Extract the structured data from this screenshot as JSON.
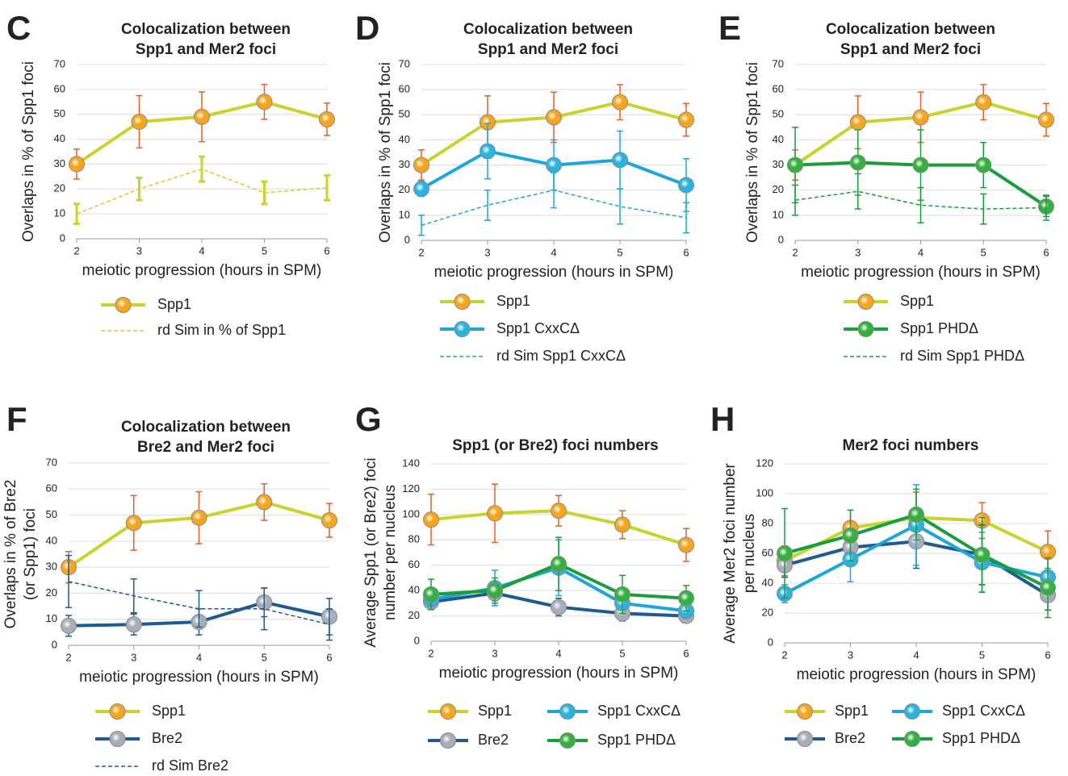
{
  "chart_data": [
    {
      "type": "line",
      "panel": "C",
      "title": [
        "Colocalization between",
        "Spp1 and Mer2 foci"
      ],
      "ylabel": [
        "Overlaps in % of Spp1 foci"
      ],
      "xlabel": "meiotic progression (hours in SPM)",
      "x": [
        2,
        3,
        4,
        5,
        6
      ],
      "xlim": [
        2,
        6
      ],
      "xticks": [
        2,
        3,
        4,
        5,
        6
      ],
      "ylim": [
        0,
        70
      ],
      "yticks": [
        0,
        10,
        20,
        30,
        40,
        50,
        60,
        70
      ],
      "grid": true,
      "legend_columns": 1,
      "series": [
        {
          "name": "Spp1",
          "color": "#c9d32b",
          "marker_color": "#f7a51c",
          "error_color": "#e2602a",
          "dashed": false,
          "values": [
            30,
            47,
            49,
            55,
            48
          ],
          "errors": [
            6,
            10.5,
            10,
            7,
            6.5
          ]
        },
        {
          "name": "rd Sim in % of Spp1",
          "color": "#c9d32b",
          "error_color": "#c9d32b",
          "dashed": true,
          "values": [
            10,
            20,
            28,
            18.5,
            20.5
          ],
          "errors": [
            4,
            4.5,
            5,
            4.5,
            5
          ]
        }
      ]
    },
    {
      "type": "line",
      "panel": "D",
      "title": [
        "Colocalization between",
        "Spp1 and Mer2 foci"
      ],
      "ylabel": [
        "Overlaps in % of Spp1 foci"
      ],
      "xlabel": "meiotic progression (hours in SPM)",
      "x": [
        2,
        3,
        4,
        5,
        6
      ],
      "xlim": [
        2,
        6
      ],
      "xticks": [
        2,
        3,
        4,
        5,
        6
      ],
      "ylim": [
        0,
        70
      ],
      "yticks": [
        0,
        10,
        20,
        30,
        40,
        50,
        60,
        70
      ],
      "grid": true,
      "legend_columns": 1,
      "series": [
        {
          "name": "Spp1",
          "color": "#c9d32b",
          "marker_color": "#f7a51c",
          "error_color": "#e2602a",
          "dashed": false,
          "values": [
            30,
            47,
            49,
            55,
            48
          ],
          "errors": [
            6,
            10.5,
            10,
            7,
            6.5
          ]
        },
        {
          "name": "Spp1 CxxCΔ",
          "color": "#1ba8d8",
          "marker_color": "#2bb3e0",
          "error_color": "#1ba8d8",
          "dashed": false,
          "values": [
            20.5,
            35.5,
            30,
            32,
            22
          ],
          "errors": [
            3,
            11,
            10,
            11.5,
            10.5
          ]
        },
        {
          "name": "rd Sim Spp1 CxxCΔ",
          "color": "#1ba8d8",
          "error_color": "#1ba8d8",
          "dashed": true,
          "values": [
            6,
            14,
            20,
            13.5,
            9
          ],
          "errors": [
            4,
            6,
            7,
            7,
            6
          ]
        }
      ]
    },
    {
      "type": "line",
      "panel": "E",
      "title": [
        "Colocalization between",
        "Spp1 and Mer2 foci"
      ],
      "ylabel": [
        "Overlaps in % of Spp1 foci"
      ],
      "xlabel": "meiotic progression (hours in SPM)",
      "x": [
        2,
        3,
        4,
        5,
        6
      ],
      "xlim": [
        2,
        6
      ],
      "xticks": [
        2,
        3,
        4,
        5,
        6
      ],
      "ylim": [
        0,
        70
      ],
      "yticks": [
        0,
        10,
        20,
        30,
        40,
        50,
        60,
        70
      ],
      "grid": true,
      "legend_columns": 1,
      "series": [
        {
          "name": "Spp1",
          "color": "#c9d32b",
          "marker_color": "#f7a51c",
          "error_color": "#e2602a",
          "dashed": false,
          "values": [
            30,
            47,
            49,
            55,
            48
          ],
          "errors": [
            6,
            10.5,
            10,
            7,
            6.5
          ]
        },
        {
          "name": "Spp1 PHDΔ",
          "color": "#1a9e3c",
          "marker_color": "#34b040",
          "error_color": "#1a9e3c",
          "dashed": false,
          "values": [
            30,
            31,
            30,
            30,
            13.5
          ],
          "errors": [
            15,
            13,
            14,
            9,
            4
          ]
        },
        {
          "name": "rd Sim Spp1 PHDΔ",
          "color": "#1a9e3c",
          "error_color": "#1a9e3c",
          "dashed": true,
          "values": [
            16,
            19.5,
            14,
            12.5,
            13
          ],
          "errors": [
            6,
            7,
            7,
            6,
            5
          ]
        }
      ]
    },
    {
      "type": "line",
      "panel": "F",
      "title": [
        "Colocalization between",
        "Bre2 and Mer2 foci"
      ],
      "ylabel": [
        "Overlaps in % of Bre2",
        "(or Spp1) foci"
      ],
      "xlabel": "meiotic progression (hours in SPM)",
      "x": [
        2,
        3,
        4,
        5,
        6
      ],
      "xlim": [
        2,
        6
      ],
      "xticks": [
        2,
        3,
        4,
        5,
        6
      ],
      "ylim": [
        0,
        70
      ],
      "yticks": [
        0,
        10,
        20,
        30,
        40,
        50,
        60,
        70
      ],
      "grid": true,
      "legend_columns": 1,
      "series": [
        {
          "name": "Spp1",
          "color": "#c9d32b",
          "marker_color": "#f7a51c",
          "error_color": "#e2602a",
          "dashed": false,
          "values": [
            30,
            47,
            49,
            55,
            48
          ],
          "errors": [
            6,
            10.5,
            10,
            7,
            6.5
          ]
        },
        {
          "name": "Bre2",
          "color": "#1f5b8e",
          "marker_color": "#a8adb8",
          "error_color": "#1f5b8e",
          "dashed": false,
          "values": [
            7.5,
            8,
            9,
            16.5,
            11
          ],
          "errors": [
            4,
            4,
            5,
            5.5,
            7
          ]
        },
        {
          "name": "rd Sim Bre2",
          "color": "#1f5b8e",
          "error_color": "#1f5b8e",
          "dashed": true,
          "values": [
            24.5,
            19,
            14,
            14,
            8
          ],
          "errors": [
            10,
            6.5,
            7,
            8,
            6
          ]
        }
      ]
    },
    {
      "type": "line",
      "panel": "G",
      "title": [
        "Spp1 (or Bre2) foci numbers"
      ],
      "ylabel": [
        "Average Spp1 (or Bre2) foci",
        "number per nucleus"
      ],
      "xlabel": "meiotic progression (hours in SPM)",
      "x": [
        2,
        3,
        4,
        5,
        6
      ],
      "xlim": [
        2,
        6
      ],
      "xticks": [
        2,
        3,
        4,
        5,
        6
      ],
      "ylim": [
        0,
        140
      ],
      "yticks": [
        0,
        20,
        40,
        60,
        80,
        100,
        120,
        140
      ],
      "grid": true,
      "legend_columns": 2,
      "series": [
        {
          "name": "Spp1",
          "color": "#c9d32b",
          "marker_color": "#f7a51c",
          "error_color": "#e2602a",
          "dashed": false,
          "values": [
            96,
            101,
            103,
            92,
            76
          ],
          "errors": [
            20,
            23,
            12,
            11,
            13
          ]
        },
        {
          "name": "Bre2",
          "color": "#1f5b8e",
          "marker_color": "#a8adb8",
          "error_color": "#1f5b8e",
          "dashed": false,
          "values": [
            31,
            38,
            27,
            22,
            20
          ],
          "errors": [
            6,
            6,
            7,
            6,
            5
          ]
        },
        {
          "name": "Spp1 CxxCΔ",
          "color": "#1ba8d8",
          "marker_color": "#2bb3e0",
          "error_color": "#1ba8d8",
          "dashed": false,
          "values": [
            33,
            42,
            58,
            30,
            24
          ],
          "errors": [
            6,
            14,
            22,
            8,
            6
          ]
        },
        {
          "name": "Spp1 PHDΔ",
          "color": "#1a9e3c",
          "marker_color": "#34b040",
          "error_color": "#1a9e3c",
          "dashed": false,
          "values": [
            37,
            40,
            61,
            37,
            34
          ],
          "errors": [
            12,
            10,
            21,
            15,
            10
          ]
        }
      ]
    },
    {
      "type": "line",
      "panel": "H",
      "title": [
        "Mer2 foci numbers"
      ],
      "ylabel": [
        "Average Mer2 foci number",
        "per nucleus"
      ],
      "xlabel": "meiotic progression (hours in SPM)",
      "x": [
        2,
        3,
        4,
        5,
        6
      ],
      "xlim": [
        2,
        6
      ],
      "xticks": [
        2,
        3,
        4,
        5,
        6
      ],
      "ylim": [
        0,
        120
      ],
      "yticks": [
        0,
        20,
        40,
        60,
        80,
        100,
        120
      ],
      "grid": true,
      "legend_columns": 2,
      "series": [
        {
          "name": "Spp1",
          "color": "#c9d32b",
          "marker_color": "#f7a51c",
          "error_color": "#e2602a",
          "dashed": false,
          "values": [
            55,
            77,
            84,
            82,
            61
          ],
          "errors": [
            10,
            12,
            17,
            12,
            14
          ]
        },
        {
          "name": "Bre2",
          "color": "#1f5b8e",
          "marker_color": "#a8adb8",
          "error_color": "#1f5b8e",
          "dashed": false,
          "values": [
            52,
            64,
            68,
            59,
            32
          ],
          "errors": [
            8,
            10,
            18,
            20,
            10
          ]
        },
        {
          "name": "Spp1 CxxCΔ",
          "color": "#1ba8d8",
          "marker_color": "#2bb3e0",
          "error_color": "#1ba8d8",
          "dashed": false,
          "values": [
            33,
            56,
            79,
            54,
            44
          ],
          "errors": [
            6,
            15,
            27,
            20,
            6
          ]
        },
        {
          "name": "Spp1 PHDΔ",
          "color": "#1a9e3c",
          "marker_color": "#34b040",
          "error_color": "#1a9e3c",
          "dashed": false,
          "values": [
            60,
            72,
            86,
            59,
            37
          ],
          "errors": [
            30,
            17,
            17,
            25,
            20
          ]
        }
      ]
    }
  ]
}
